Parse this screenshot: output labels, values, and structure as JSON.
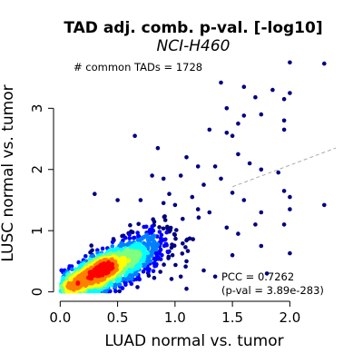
{
  "chart_data": {
    "type": "scatter",
    "title": "TAD adj. comb. p-val. [-log10]",
    "subtitle": "NCI-H460",
    "xlabel": "LUAD normal vs. tumor",
    "ylabel": "LUSC normal vs. tumor",
    "xlim": [
      -0.05,
      2.4
    ],
    "ylim": [
      -0.08,
      3.88
    ],
    "xticks": [
      0.0,
      0.5,
      1.0,
      1.5,
      2.0
    ],
    "xtick_labels": [
      "0.0",
      "0.5",
      "1.0",
      "1.5",
      "2.0"
    ],
    "yticks": [
      0,
      1,
      2,
      3
    ],
    "ytick_labels": [
      "0",
      "1",
      "2",
      "3"
    ],
    "grid": false,
    "density_colored": true,
    "palette": [
      "#00007F",
      "#0000FF",
      "#007FFF",
      "#00FFFF",
      "#7FFF7F",
      "#FFFF00",
      "#FF7F00",
      "#FF0000"
    ],
    "annotations": {
      "common_tads": "# common TADs = 1728",
      "pcc": "PCC = 0.7262",
      "pval": "(p-val = 3.89e-283)"
    },
    "fit_line": {
      "slope": 0.705,
      "intercept": 0.66,
      "x_range": [
        1.5,
        2.4
      ],
      "style": "dashed",
      "color": "#AAAAAA"
    },
    "outlier_points": [
      [
        2.0,
        3.75
      ],
      [
        2.3,
        3.73
      ],
      [
        1.4,
        3.42
      ],
      [
        1.6,
        3.35
      ],
      [
        1.85,
        3.3
      ],
      [
        1.7,
        3.18
      ],
      [
        1.95,
        3.15
      ],
      [
        2.0,
        3.25
      ],
      [
        1.45,
        3.0
      ],
      [
        1.6,
        2.88
      ],
      [
        1.75,
        2.9
      ],
      [
        1.95,
        2.8
      ],
      [
        1.55,
        2.75
      ],
      [
        1.3,
        2.65
      ],
      [
        1.45,
        2.6
      ],
      [
        1.5,
        2.55
      ],
      [
        0.65,
        2.55
      ],
      [
        1.95,
        2.65
      ],
      [
        1.1,
        2.2
      ],
      [
        1.35,
        2.05
      ],
      [
        1.55,
        2.25
      ],
      [
        1.65,
        2.1
      ],
      [
        1.75,
        2.0
      ],
      [
        1.9,
        1.95
      ],
      [
        1.2,
        2.05
      ],
      [
        1.05,
        1.9
      ],
      [
        1.25,
        1.75
      ],
      [
        1.4,
        1.85
      ],
      [
        1.6,
        1.5
      ],
      [
        1.5,
        1.62
      ],
      [
        1.95,
        1.65
      ],
      [
        2.0,
        1.55
      ],
      [
        2.0,
        1.35
      ],
      [
        1.75,
        1.3
      ],
      [
        1.7,
        1.1
      ],
      [
        1.95,
        1.1
      ],
      [
        2.3,
        1.42
      ],
      [
        1.45,
        1.05
      ],
      [
        1.55,
        0.95
      ],
      [
        1.75,
        0.75
      ],
      [
        1.5,
        0.6
      ],
      [
        2.0,
        0.63
      ],
      [
        1.35,
        0.25
      ],
      [
        1.25,
        0.35
      ],
      [
        1.1,
        0.5
      ],
      [
        1.05,
        0.25
      ],
      [
        1.8,
        0.3
      ],
      [
        1.1,
        0.05
      ],
      [
        0.85,
        2.35
      ],
      [
        0.9,
        1.85
      ],
      [
        0.8,
        1.9
      ],
      [
        0.95,
        1.6
      ],
      [
        1.15,
        1.55
      ],
      [
        1.3,
        1.3
      ],
      [
        1.0,
        1.42
      ],
      [
        0.7,
        1.5
      ],
      [
        0.3,
        1.6
      ],
      [
        0.5,
        1.5
      ],
      [
        0.9,
        1.45
      ],
      [
        1.2,
        1.35
      ]
    ]
  }
}
